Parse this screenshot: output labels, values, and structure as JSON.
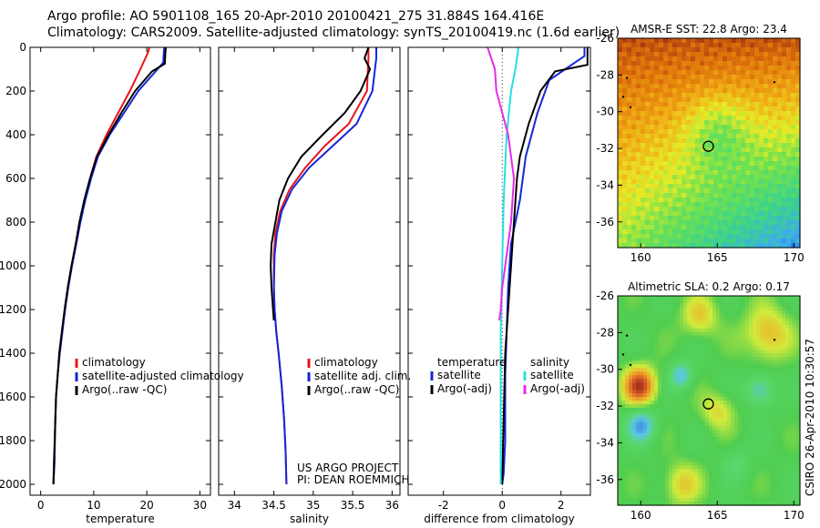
{
  "header": {
    "title_line1": "Argo profile: AO 5901108_165 20-Apr-2010 20100421_275 31.884S 164.416E",
    "title_line2": "Climatology: CARS2009. Satellite-adjusted climatology: synTS_20100419.nc (1.6d earlier)"
  },
  "footer": {
    "credit": "CSIRO 26-Apr-2010 10:30:57",
    "project_line1": "US ARGO PROJECT",
    "project_line2": "PI: DEAN ROEMMICH"
  },
  "colors": {
    "climatology": "#e8141a",
    "satellite": "#1526d8",
    "argo": "#000000",
    "salinity_satellite": "#27e0e0",
    "salinity_argo": "#e82ae8"
  },
  "chart_data": [
    {
      "type": "line",
      "title": "",
      "xlabel": "temperature",
      "ylabel": "",
      "xlim": [
        -2,
        32
      ],
      "ylim": [
        2050,
        0
      ],
      "xticks": [
        0,
        10,
        20,
        30
      ],
      "yticks": [
        0,
        200,
        400,
        600,
        800,
        1000,
        1200,
        1400,
        1600,
        1800,
        2000
      ],
      "legend": {
        "placement": "lower-right",
        "entries": [
          "climatology",
          "satellite-adjusted climatology",
          "Argo(..raw -QC)"
        ]
      },
      "series": [
        {
          "name": "climatology",
          "color": "#e8141a",
          "x": [
            20.5,
            20.2,
            18.8,
            16.8,
            14.6,
            12.4,
            10.5,
            9.3,
            8.3,
            7.4,
            6.6,
            5.9,
            5.2,
            4.6,
            4.1,
            3.6,
            3.2,
            2.9,
            2.7,
            2.6,
            2.4
          ],
          "y": [
            0,
            25,
            100,
            200,
            300,
            400,
            500,
            600,
            700,
            800,
            900,
            1000,
            1100,
            1200,
            1300,
            1400,
            1500,
            1600,
            1750,
            1900,
            2000
          ]
        },
        {
          "name": "satellite-adjusted climatology",
          "color": "#1526d8",
          "x": [
            23.3,
            23.2,
            23.1,
            18.4,
            15.7,
            13.0,
            10.8,
            9.5,
            8.4,
            7.5,
            6.7,
            5.9,
            5.2,
            4.6,
            4.1,
            3.6,
            3.2,
            2.9,
            2.7,
            2.6,
            2.4
          ],
          "y": [
            0,
            25,
            70,
            200,
            300,
            400,
            500,
            600,
            700,
            800,
            900,
            1000,
            1100,
            1200,
            1300,
            1400,
            1500,
            1600,
            1750,
            1900,
            2000
          ]
        },
        {
          "name": "Argo(..raw -QC)",
          "color": "#000000",
          "x": [
            23.6,
            23.5,
            23.4,
            21.0,
            17.8,
            15.2,
            12.8,
            10.6,
            9.3,
            8.2,
            7.3,
            6.6,
            5.8,
            5.1,
            4.5,
            4.0,
            3.5,
            3.2,
            2.9,
            2.7,
            2.5,
            2.4
          ],
          "y": [
            0,
            25,
            75,
            110,
            200,
            300,
            400,
            500,
            600,
            700,
            800,
            900,
            1000,
            1100,
            1200,
            1300,
            1400,
            1500,
            1600,
            1750,
            1900,
            2000
          ]
        }
      ]
    },
    {
      "type": "line",
      "title": "",
      "xlabel": "salinity",
      "ylabel": "",
      "xlim": [
        33.8,
        36.1
      ],
      "ylim": [
        2050,
        0
      ],
      "xticks": [
        34,
        34.5,
        35,
        35.5,
        36
      ],
      "xticklabels": [
        "34",
        "34.5",
        "35",
        "35.5",
        "36"
      ],
      "legend": {
        "placement": "lower-right",
        "entries": [
          "climatology",
          "satellite adj. clim.",
          "Argo(..raw -QC)"
        ]
      },
      "series": [
        {
          "name": "climatology",
          "color": "#e8141a",
          "x": [
            35.7,
            35.7,
            35.68,
            35.45,
            35.15,
            34.9,
            34.7,
            34.58,
            34.52,
            34.5,
            34.5,
            34.51,
            34.53,
            34.56,
            34.6,
            34.63,
            34.65,
            34.66
          ],
          "y": [
            0,
            50,
            200,
            350,
            450,
            550,
            650,
            750,
            850,
            950,
            1100,
            1200,
            1300,
            1400,
            1550,
            1700,
            1850,
            2000
          ]
        },
        {
          "name": "satellite adj. clim.",
          "color": "#1526d8",
          "x": [
            35.8,
            35.8,
            35.75,
            35.55,
            35.25,
            34.95,
            34.73,
            34.6,
            34.54,
            34.51,
            34.5,
            34.51,
            34.53,
            34.56,
            34.6,
            34.63,
            34.65,
            34.66
          ],
          "y": [
            0,
            50,
            200,
            350,
            450,
            550,
            650,
            750,
            850,
            950,
            1100,
            1200,
            1300,
            1400,
            1550,
            1700,
            1850,
            2000
          ]
        },
        {
          "name": "Argo(..raw -QC)",
          "color": "#000000",
          "x": [
            35.7,
            35.65,
            35.72,
            35.6,
            35.4,
            35.12,
            34.85,
            34.68,
            34.57,
            34.52,
            34.47,
            34.46,
            34.47,
            34.49,
            34.5
          ],
          "y": [
            0,
            50,
            100,
            200,
            300,
            400,
            500,
            600,
            700,
            800,
            900,
            1000,
            1100,
            1200,
            1250
          ]
        }
      ]
    },
    {
      "type": "line",
      "title": "",
      "xlabel": "difference from climatology",
      "ylabel": "",
      "xlim": [
        -3.2,
        3.0
      ],
      "ylim": [
        2050,
        0
      ],
      "xticks": [
        -2,
        0,
        2
      ],
      "legend": {
        "placement": "lower-center",
        "columns": [
          {
            "header": "temperature",
            "entries": [
              "satellite",
              "Argo(-adj)"
            ]
          },
          {
            "header": "salinity",
            "entries": [
              "satellite",
              "Argo(-adj)"
            ]
          }
        ]
      },
      "series": [
        {
          "name": "temperature satellite",
          "color": "#1526d8",
          "x": [
            2.8,
            2.8,
            1.6,
            1.2,
            0.8,
            0.6,
            0.3,
            0.2,
            0.15,
            0.1,
            0.1,
            0.1,
            0.05,
            0.0
          ],
          "y": [
            0,
            40,
            150,
            300,
            500,
            700,
            900,
            1100,
            1300,
            1500,
            1650,
            1800,
            1950,
            2000
          ]
        },
        {
          "name": "temperature Argo(-adj)",
          "color": "#000000",
          "x": [
            2.9,
            2.9,
            1.8,
            1.3,
            0.9,
            0.6,
            0.5,
            0.4,
            0.3,
            0.2,
            0.1,
            0.05,
            0.0
          ],
          "y": [
            0,
            80,
            110,
            200,
            350,
            500,
            600,
            800,
            1000,
            1200,
            1400,
            1700,
            2000
          ]
        },
        {
          "name": "salinity satellite",
          "color": "#27e0e0",
          "x": [
            0.55,
            0.45,
            0.3,
            0.15,
            0.05,
            0.0,
            -0.05,
            -0.05,
            -0.05,
            -0.05
          ],
          "y": [
            0,
            100,
            200,
            400,
            700,
            1000,
            1300,
            1600,
            1900,
            2000
          ]
        },
        {
          "name": "salinity Argo(-adj)",
          "color": "#e82ae8",
          "x": [
            -0.5,
            -0.25,
            -0.2,
            0.2,
            0.4,
            0.3,
            0.1,
            0.0,
            -0.05,
            -0.1
          ],
          "y": [
            0,
            100,
            200,
            400,
            600,
            800,
            1000,
            1100,
            1200,
            1250
          ]
        }
      ]
    },
    {
      "type": "heatmap",
      "title": "AMSR-E SST: 22.8  Argo: 23.4",
      "xlim": [
        158.5,
        170.4
      ],
      "ylim": [
        -37.4,
        -26
      ],
      "xticks": [
        160,
        165,
        170
      ],
      "yticks": [
        -26,
        -28,
        -30,
        -32,
        -34,
        -36
      ],
      "profile_marker": {
        "lon": 164.416,
        "lat": -31.884
      }
    },
    {
      "type": "heatmap",
      "title": "Altimetric SLA: 0.2  Argo: 0.17",
      "xlim": [
        158.5,
        170.4
      ],
      "ylim": [
        -37.4,
        -26
      ],
      "xticks": [
        160,
        165,
        170
      ],
      "yticks": [
        -26,
        -28,
        -30,
        -32,
        -34,
        -36
      ],
      "profile_marker": {
        "lon": 164.416,
        "lat": -31.884
      }
    }
  ]
}
